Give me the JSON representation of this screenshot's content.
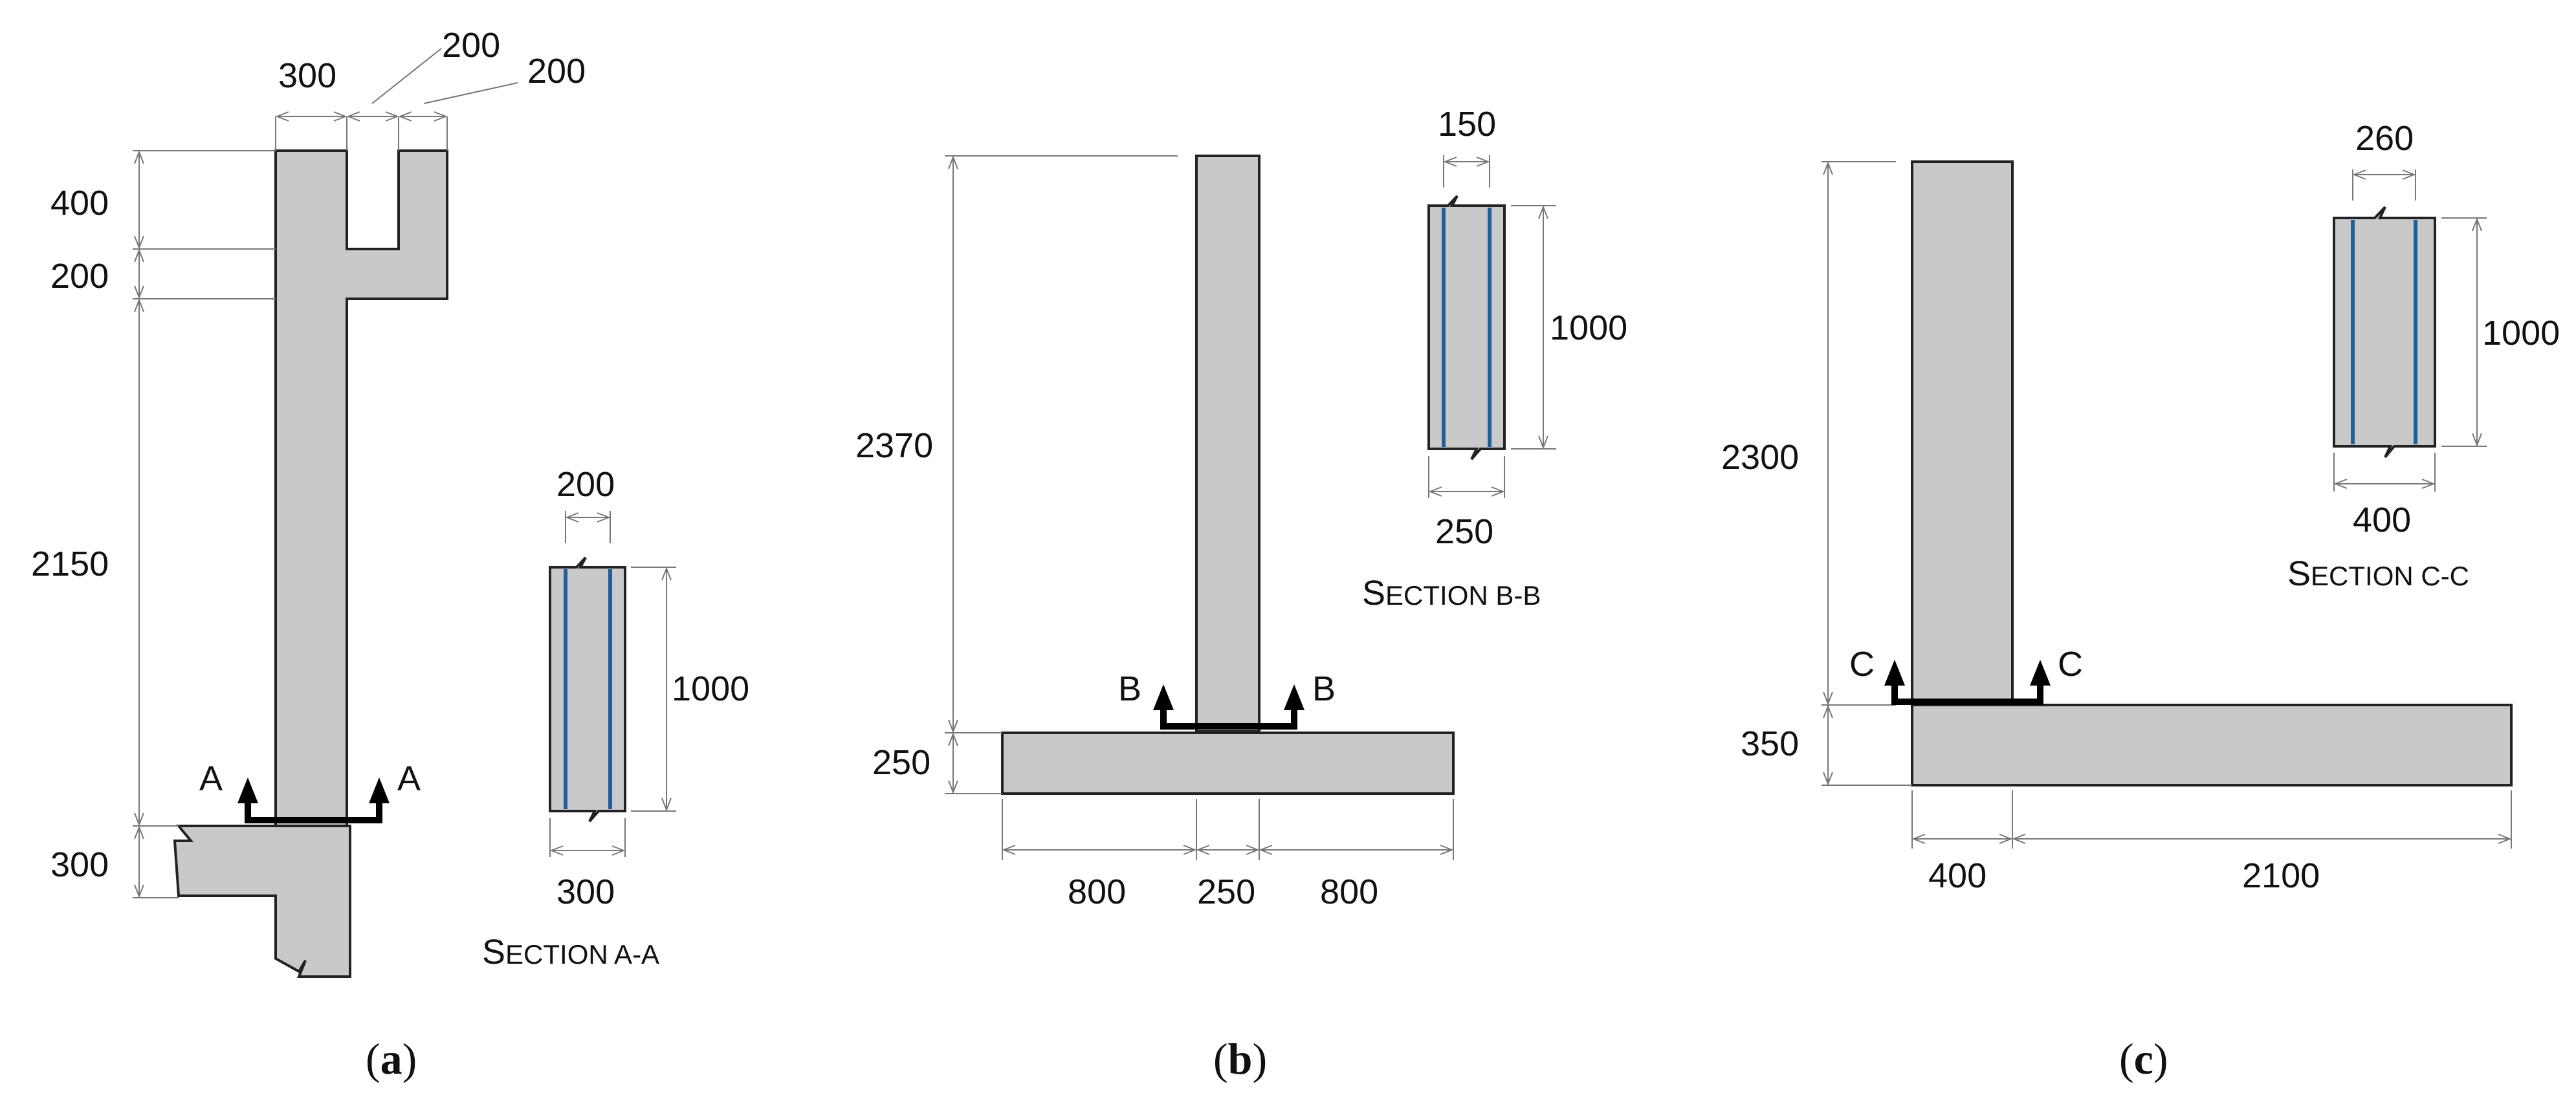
{
  "colors": {
    "concrete": "#c9c9c9",
    "outline": "#222222",
    "dimension_line": "#777777",
    "rebar": "#1f5f9a",
    "section_cut": "#000000"
  },
  "panel_a": {
    "dims": {
      "top_width": "300",
      "gap_width": "200",
      "right_width": "200",
      "height_top": "400",
      "height_mid": "200",
      "height_wall": "2150",
      "height_base": "300"
    },
    "cut_label": "A",
    "section": {
      "title_initial": "S",
      "title_rest": "ECTION A-A",
      "width_top": "200",
      "height": "1000",
      "width_bottom": "300"
    },
    "caption_open": "(",
    "caption_letter": "a",
    "caption_close": ")"
  },
  "panel_b": {
    "dims": {
      "height_wall": "2370",
      "height_footing": "250",
      "left_toe": "800",
      "wall": "250",
      "right_toe": "800"
    },
    "cut_label": "B",
    "section": {
      "title_initial": "S",
      "title_rest": "ECTION B-B",
      "width_top": "150",
      "height": "1000",
      "width_bottom": "250"
    },
    "caption_open": "(",
    "caption_letter": "b",
    "caption_close": ")"
  },
  "panel_c": {
    "dims": {
      "height_wall": "2300",
      "height_footing": "350",
      "wall": "400",
      "toe": "2100"
    },
    "cut_label": "C",
    "section": {
      "title_initial": "S",
      "title_rest": "ECTION C-C",
      "width_top": "260",
      "height": "1000",
      "width_bottom": "400"
    },
    "caption_open": "(",
    "caption_letter": "c",
    "caption_close": ")"
  }
}
